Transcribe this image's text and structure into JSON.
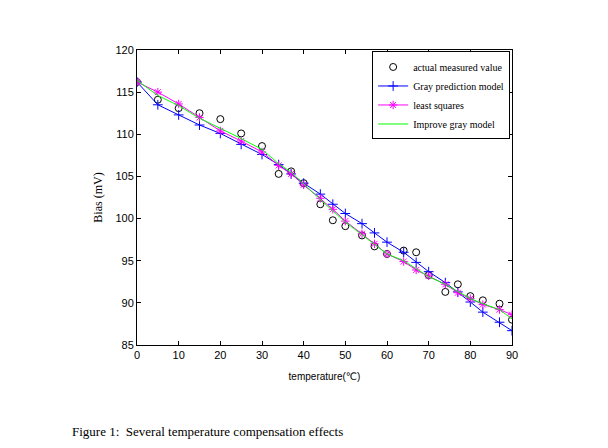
{
  "chart_data": {
    "type": "line",
    "x_label": "temperature(℃)",
    "y_label": "Bias (mV)",
    "annotations": [
      "Figure 1:  Several temperature compensation effects"
    ],
    "x": [
      0,
      5,
      10,
      15,
      20,
      25,
      30,
      34,
      37,
      40,
      44,
      47,
      50,
      54,
      57,
      60,
      64,
      67,
      70,
      74,
      77,
      80,
      83,
      87,
      90
    ],
    "xlim": [
      0,
      90
    ],
    "xticks": [
      0,
      10,
      20,
      30,
      40,
      50,
      60,
      70,
      80,
      90
    ],
    "ylim": [
      85,
      120
    ],
    "yticks": [
      85,
      90,
      95,
      100,
      105,
      110,
      115,
      120
    ],
    "grid": false,
    "legend": "upper right",
    "series": [
      {
        "name": "actual measured value",
        "color": "#000000",
        "type": "scatter",
        "marker": "circle",
        "line_style": "none",
        "values": [
          116.2,
          114.1,
          113.1,
          112.5,
          111.8,
          110.1,
          108.6,
          105.3,
          105.6,
          104.2,
          101.7,
          99.8,
          99.1,
          98.0,
          96.7,
          95.8,
          96.2,
          96.0,
          93.3,
          91.3,
          92.2,
          90.8,
          90.3,
          89.9,
          88.0
        ]
      },
      {
        "name": "Gray prediction model",
        "color": "#0000ff",
        "type": "line",
        "marker": "plus",
        "line_style": "solid",
        "values": [
          116.2,
          113.5,
          112.3,
          111.1,
          110.1,
          108.8,
          107.6,
          106.4,
          105.3,
          104.2,
          102.9,
          101.7,
          100.6,
          99.4,
          98.3,
          97.2,
          96.0,
          94.8,
          93.7,
          92.4,
          91.3,
          90.1,
          88.9,
          87.7,
          86.7
        ]
      },
      {
        "name": "least squares",
        "color": "#ff00ff",
        "type": "line",
        "marker": "star",
        "line_style": "solid",
        "values": [
          116.2,
          115.0,
          113.6,
          112.0,
          110.4,
          109.2,
          107.9,
          106.3,
          105.3,
          104.0,
          102.4,
          101.1,
          99.7,
          98.2,
          97.0,
          95.8,
          94.9,
          93.9,
          93.2,
          92.2,
          91.2,
          90.5,
          89.8,
          89.2,
          88.6
        ]
      },
      {
        "name": "Improve gray model",
        "color": "#00ff00",
        "type": "line",
        "marker": "none",
        "line_style": "solid",
        "values": [
          116.4,
          114.6,
          113.4,
          111.9,
          110.7,
          109.5,
          108.2,
          106.5,
          105.5,
          104.1,
          102.3,
          100.9,
          99.6,
          98.1,
          96.9,
          95.8,
          95.0,
          94.1,
          93.1,
          92.2,
          91.3,
          90.5,
          89.9,
          89.2,
          88.1
        ]
      }
    ]
  }
}
